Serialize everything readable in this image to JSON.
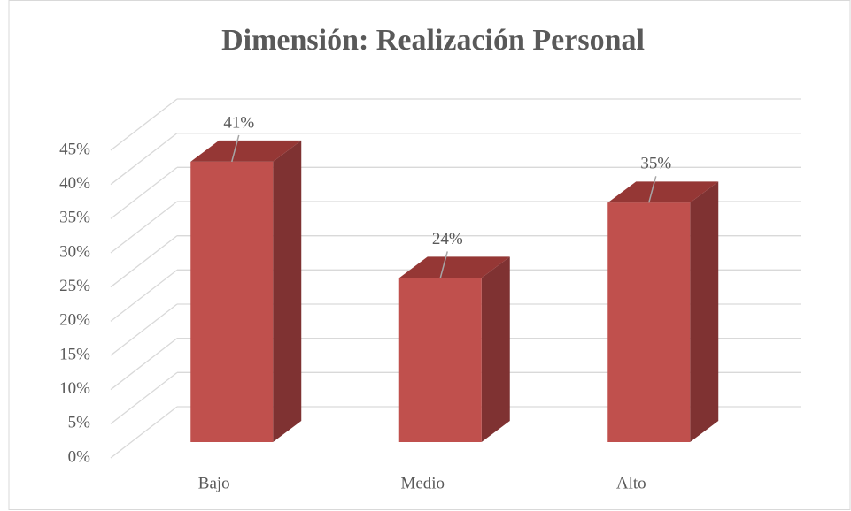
{
  "chart_data": {
    "type": "bar3d",
    "title": "Dimensión: Realización Personal",
    "categories": [
      "Bajo",
      "Medio",
      "Alto"
    ],
    "values": [
      41,
      24,
      35
    ],
    "value_labels": [
      "41%",
      "24%",
      "35%"
    ],
    "color": "#c0504d",
    "ylim": [
      0,
      45
    ],
    "yticks": [
      {
        "value": 0,
        "label": "0%"
      },
      {
        "value": 5,
        "label": "5%"
      },
      {
        "value": 10,
        "label": "10%"
      },
      {
        "value": 15,
        "label": "15%"
      },
      {
        "value": 20,
        "label": "20%"
      },
      {
        "value": 25,
        "label": "25%"
      },
      {
        "value": 30,
        "label": "30%"
      },
      {
        "value": 35,
        "label": "35%"
      },
      {
        "value": 40,
        "label": "40%"
      },
      {
        "value": 45,
        "label": "45%"
      }
    ],
    "grid": true
  }
}
